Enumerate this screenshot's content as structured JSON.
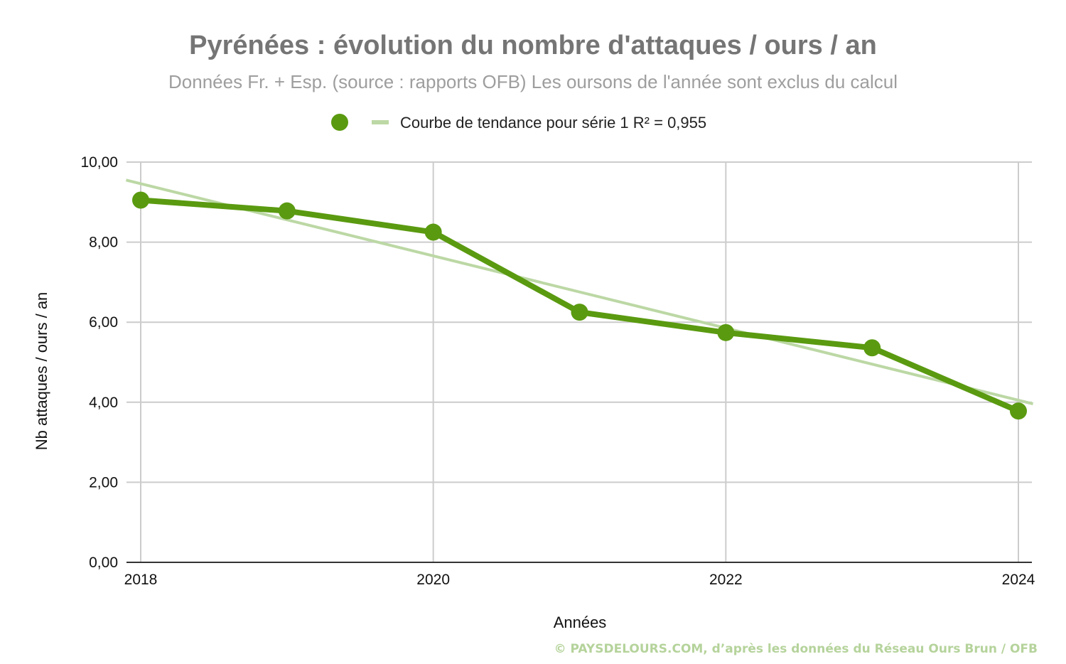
{
  "chart_data": {
    "type": "line",
    "title": "Pyrénées : évolution du nombre d'attaques / ours / an",
    "subtitle": "Données Fr. + Esp. (source : rapports OFB) Les oursons de l'année sont exclus du calcul",
    "xlabel": "Années",
    "ylabel": "Nb attaques / ours / an",
    "x": [
      2018,
      2019,
      2020,
      2021,
      2022,
      2023,
      2024
    ],
    "x_ticks": [
      "2018",
      "2020",
      "2022",
      "2024"
    ],
    "x_tick_values": [
      2018,
      2020,
      2022,
      2024
    ],
    "xlim": [
      2018,
      2024
    ],
    "ylim": [
      0,
      10
    ],
    "y_ticks": [
      "0,00",
      "2,00",
      "4,00",
      "6,00",
      "8,00",
      "10,00"
    ],
    "y_tick_values": [
      0,
      2,
      4,
      6,
      8,
      10
    ],
    "grid": true,
    "legend_position": "top",
    "series": [
      {
        "values": [
          9.05,
          8.78,
          8.25,
          6.25,
          5.74,
          5.36,
          3.78
        ],
        "color": "#5a9a10",
        "marker": "circle"
      }
    ],
    "trendline": {
      "name": "Courbe de tendance pour série 1 R² = 0,955",
      "type": "linear",
      "start": [
        2017.9,
        9.55
      ],
      "end": [
        2024.1,
        3.96
      ],
      "color": "#bcd8a5"
    }
  },
  "footer": {
    "credit": "© PAYSDELOURS.COM,  d’après les données du Réseau Ours Brun / OFB"
  },
  "colors": {
    "series": "#5a9a10",
    "trend": "#bcd8a5",
    "grid": "#cccccc",
    "axis": "#333333",
    "title": "#757575",
    "subtitle": "#9e9e9e",
    "credit": "#b5d39b"
  }
}
